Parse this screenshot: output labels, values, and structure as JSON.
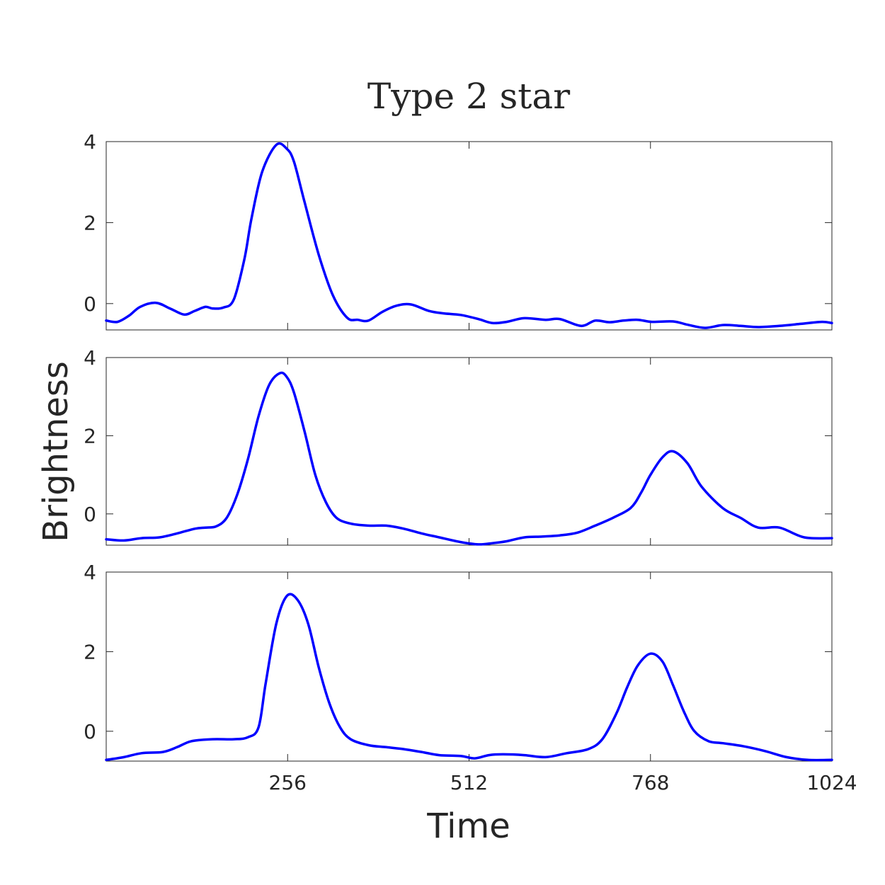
{
  "colors": {
    "series": "#0000ff",
    "text": "#262626",
    "axis": "#262626"
  },
  "chart_data": {
    "type": "line",
    "title": "Type 2 star",
    "xlabel": "Time",
    "ylabel": "Brightness",
    "xlim": [
      0,
      1024
    ],
    "x_ticks": [
      256,
      512,
      768,
      1024
    ],
    "x_tick_labels": [
      "256",
      "512",
      "768",
      "1024"
    ],
    "y_ticks": [
      0,
      2,
      4
    ],
    "y_tick_labels": [
      "0",
      "2",
      "4"
    ],
    "grid": false,
    "legend": false,
    "panels": [
      {
        "ylim": [
          -0.65,
          4
        ],
        "series": [
          {
            "x": [
              0,
              16,
              32,
              48,
              70,
              90,
              110,
              125,
              140,
              150,
              165,
              180,
              195,
              205,
              220,
              240,
              255,
              265,
              280,
              300,
              320,
              340,
              355,
              370,
              390,
              410,
              430,
              455,
              475,
              500,
              525,
              545,
              565,
              590,
              620,
              640,
              670,
              690,
              710,
              730,
              750,
              770,
              800,
              820,
              845,
              870,
              895,
              920,
              950,
              980,
              1010,
              1024
            ],
            "values": [
              -0.42,
              -0.45,
              -0.3,
              -0.08,
              0.02,
              -0.12,
              -0.27,
              -0.18,
              -0.08,
              -0.12,
              -0.1,
              0.1,
              1.1,
              2.1,
              3.25,
              3.92,
              3.82,
              3.5,
              2.5,
              1.2,
              0.2,
              -0.35,
              -0.4,
              -0.42,
              -0.2,
              -0.05,
              -0.02,
              -0.18,
              -0.24,
              -0.28,
              -0.38,
              -0.48,
              -0.45,
              -0.36,
              -0.4,
              -0.38,
              -0.55,
              -0.42,
              -0.46,
              -0.42,
              -0.4,
              -0.45,
              -0.44,
              -0.52,
              -0.6,
              -0.53,
              -0.55,
              -0.58,
              -0.55,
              -0.5,
              -0.45,
              -0.48
            ]
          }
        ]
      },
      {
        "ylim": [
          -0.8,
          4
        ],
        "series": [
          {
            "x": [
              0,
              25,
              50,
              75,
              100,
              125,
              140,
              155,
              170,
              185,
              200,
              215,
              230,
              245,
              255,
              265,
              280,
              295,
              310,
              325,
              345,
              370,
              395,
              420,
              445,
              470,
              500,
              525,
              545,
              565,
              590,
              615,
              640,
              665,
              690,
              715,
              740,
              755,
              768,
              785,
              800,
              820,
              840,
              870,
              895,
              920,
              950,
              985,
              1024
            ],
            "values": [
              -0.65,
              -0.68,
              -0.62,
              -0.6,
              -0.5,
              -0.38,
              -0.35,
              -0.32,
              -0.1,
              0.5,
              1.4,
              2.5,
              3.3,
              3.6,
              3.5,
              3.1,
              2.1,
              1.0,
              0.3,
              -0.1,
              -0.25,
              -0.3,
              -0.3,
              -0.38,
              -0.5,
              -0.6,
              -0.72,
              -0.78,
              -0.75,
              -0.7,
              -0.6,
              -0.58,
              -0.55,
              -0.48,
              -0.3,
              -0.1,
              0.15,
              0.55,
              1.0,
              1.45,
              1.6,
              1.3,
              0.7,
              0.15,
              -0.1,
              -0.35,
              -0.35,
              -0.6,
              -0.62
            ]
          }
        ]
      },
      {
        "ylim": [
          -0.75,
          4
        ],
        "series": [
          {
            "x": [
              0,
              25,
              50,
              80,
              100,
              120,
              150,
              180,
              200,
              215,
              225,
              240,
              255,
              270,
              285,
              300,
              315,
              330,
              345,
              370,
              395,
              420,
              445,
              470,
              500,
              520,
              540,
              560,
              590,
              620,
              650,
              680,
              700,
              720,
              735,
              750,
              768,
              785,
              800,
              815,
              830,
              850,
              870,
              900,
              930,
              960,
              990,
              1024
            ],
            "values": [
              -0.72,
              -0.65,
              -0.55,
              -0.52,
              -0.4,
              -0.25,
              -0.2,
              -0.2,
              -0.15,
              0.1,
              1.2,
              2.7,
              3.4,
              3.3,
              2.7,
              1.6,
              0.7,
              0.1,
              -0.2,
              -0.35,
              -0.4,
              -0.45,
              -0.52,
              -0.6,
              -0.62,
              -0.68,
              -0.6,
              -0.58,
              -0.6,
              -0.65,
              -0.55,
              -0.45,
              -0.2,
              0.45,
              1.1,
              1.65,
              1.95,
              1.75,
              1.15,
              0.5,
              0.0,
              -0.25,
              -0.3,
              -0.38,
              -0.5,
              -0.65,
              -0.72,
              -0.72
            ]
          }
        ]
      }
    ]
  }
}
